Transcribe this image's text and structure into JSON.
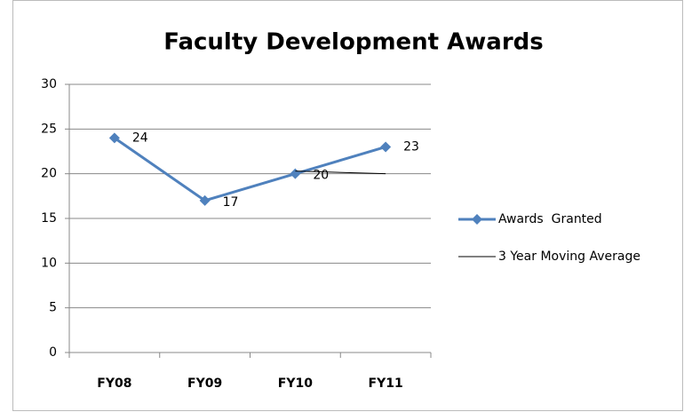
{
  "chart_data": {
    "type": "line",
    "title": "Faculty Development Awards",
    "categories": [
      "FY08",
      "FY09",
      "FY10",
      "FY11"
    ],
    "series": [
      {
        "name": "Awards  Granted",
        "color": "#4f81bd",
        "values": [
          24,
          17,
          20,
          23
        ]
      },
      {
        "name": "3 Year Moving Average",
        "color": "#000000",
        "values": [
          null,
          null,
          20.3,
          20
        ]
      }
    ],
    "ylim": [
      0,
      30
    ],
    "yticks": [
      0,
      5,
      10,
      15,
      20,
      25,
      30
    ],
    "grid": true,
    "legend": "right"
  }
}
